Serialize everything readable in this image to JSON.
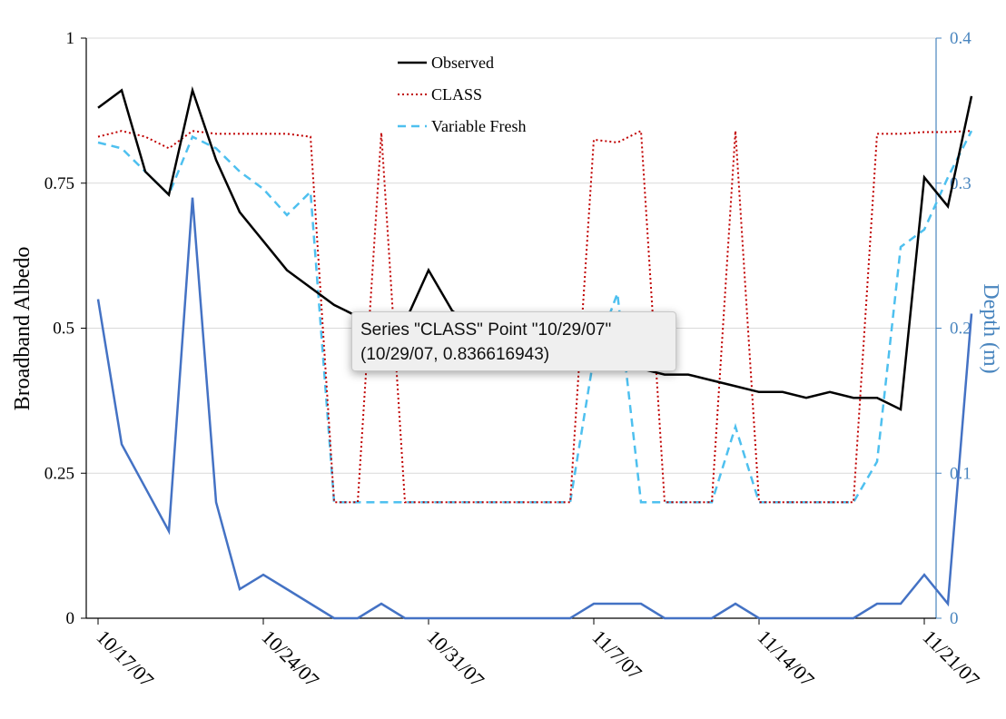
{
  "chart_data": {
    "type": "line",
    "title": "",
    "xlabel": "",
    "ylabel": "Broadband Albedo",
    "y2label": "Depth (m)",
    "ylim": [
      0,
      1
    ],
    "y2lim": [
      0,
      0.4
    ],
    "yticks": [
      "0",
      "0.25",
      "0.5",
      "0.75",
      "1"
    ],
    "y2ticks": [
      "0",
      "0.1",
      "0.2",
      "0.3",
      "0.4"
    ],
    "xticks": [
      "10/17/07",
      "10/24/07",
      "10/31/07",
      "11/7/07",
      "11/14/07",
      "11/21/07"
    ],
    "x_start": "10/17/07",
    "x_end": "11/21/07",
    "grid": true,
    "legend_position": "top-center",
    "series": [
      {
        "name": "Observed",
        "axis": "left",
        "color": "#000000",
        "style": "solid",
        "x": [
          "10/17/07",
          "10/18/07",
          "10/19/07",
          "10/20/07",
          "10/21/07",
          "10/22/07",
          "10/23/07",
          "10/24/07",
          "10/25/07",
          "10/26/07",
          "10/27/07",
          "10/28/07",
          "10/29/07",
          "10/30/07",
          "10/31/07",
          "11/1/07",
          "11/2/07",
          "11/3/07",
          "11/4/07",
          "11/5/07",
          "11/6/07",
          "11/7/07",
          "11/8/07",
          "11/9/07",
          "11/10/07",
          "11/11/07",
          "11/12/07",
          "11/13/07",
          "11/14/07",
          "11/15/07",
          "11/16/07",
          "11/17/07",
          "11/18/07",
          "11/19/07",
          "11/20/07",
          "11/21/07",
          "11/22/07",
          "11/23/07"
        ],
        "values": [
          0.88,
          0.91,
          0.77,
          0.73,
          0.91,
          0.79,
          0.7,
          0.65,
          0.6,
          0.57,
          0.54,
          0.52,
          0.51,
          0.51,
          0.6,
          0.53,
          0.5,
          0.49,
          0.48,
          0.47,
          0.46,
          0.45,
          0.44,
          0.43,
          0.42,
          0.42,
          0.41,
          0.4,
          0.39,
          0.39,
          0.38,
          0.39,
          0.38,
          0.38,
          0.36,
          0.76,
          0.71,
          0.9
        ]
      },
      {
        "name": "CLASS",
        "axis": "left",
        "color": "#c00000",
        "style": "dotted",
        "x": [
          "10/17/07",
          "10/18/07",
          "10/19/07",
          "10/20/07",
          "10/21/07",
          "10/22/07",
          "10/23/07",
          "10/24/07",
          "10/25/07",
          "10/26/07",
          "10/27/07",
          "10/28/07",
          "10/29/07",
          "10/30/07",
          "10/31/07",
          "11/1/07",
          "11/2/07",
          "11/3/07",
          "11/4/07",
          "11/5/07",
          "11/6/07",
          "11/7/07",
          "11/8/07",
          "11/9/07",
          "11/10/07",
          "11/11/07",
          "11/12/07",
          "11/13/07",
          "11/14/07",
          "11/15/07",
          "11/16/07",
          "11/17/07",
          "11/18/07",
          "11/19/07",
          "11/20/07",
          "11/21/07",
          "11/22/07",
          "11/23/07"
        ],
        "values": [
          0.83,
          0.84,
          0.83,
          0.81,
          0.84,
          0.835,
          0.835,
          0.835,
          0.835,
          0.83,
          0.2,
          0.2,
          0.837,
          0.2,
          0.2,
          0.2,
          0.2,
          0.2,
          0.2,
          0.2,
          0.2,
          0.825,
          0.82,
          0.84,
          0.2,
          0.2,
          0.2,
          0.84,
          0.2,
          0.2,
          0.2,
          0.2,
          0.2,
          0.835,
          0.835,
          0.838,
          0.838,
          0.84
        ]
      },
      {
        "name": "Variable Fresh",
        "axis": "left",
        "color": "#4ec0ef",
        "style": "dashed",
        "x": [
          "10/17/07",
          "10/18/07",
          "10/19/07",
          "10/20/07",
          "10/21/07",
          "10/22/07",
          "10/23/07",
          "10/24/07",
          "10/25/07",
          "10/26/07",
          "10/27/07",
          "10/28/07",
          "10/29/07",
          "10/30/07",
          "10/31/07",
          "11/1/07",
          "11/2/07",
          "11/3/07",
          "11/4/07",
          "11/5/07",
          "11/6/07",
          "11/7/07",
          "11/8/07",
          "11/9/07",
          "11/10/07",
          "11/11/07",
          "11/12/07",
          "11/13/07",
          "11/14/07",
          "11/15/07",
          "11/16/07",
          "11/17/07",
          "11/18/07",
          "11/19/07",
          "11/20/07",
          "11/21/07",
          "11/22/07",
          "11/23/07"
        ],
        "values": [
          0.82,
          0.81,
          0.77,
          0.73,
          0.83,
          0.81,
          0.77,
          0.74,
          0.695,
          0.735,
          0.2,
          0.2,
          0.2,
          0.2,
          0.2,
          0.2,
          0.2,
          0.2,
          0.2,
          0.2,
          0.2,
          0.45,
          0.56,
          0.2,
          0.2,
          0.2,
          0.2,
          0.33,
          0.2,
          0.2,
          0.2,
          0.2,
          0.2,
          0.27,
          0.64,
          0.67,
          0.76,
          0.84
        ]
      },
      {
        "name": "Depth",
        "axis": "right",
        "color": "#4472c4",
        "style": "solid",
        "x": [
          "10/17/07",
          "10/18/07",
          "10/19/07",
          "10/20/07",
          "10/21/07",
          "10/22/07",
          "10/23/07",
          "10/24/07",
          "10/25/07",
          "10/26/07",
          "10/27/07",
          "10/28/07",
          "10/29/07",
          "10/30/07",
          "10/31/07",
          "11/1/07",
          "11/2/07",
          "11/3/07",
          "11/4/07",
          "11/5/07",
          "11/6/07",
          "11/7/07",
          "11/8/07",
          "11/9/07",
          "11/10/07",
          "11/11/07",
          "11/12/07",
          "11/13/07",
          "11/14/07",
          "11/15/07",
          "11/16/07",
          "11/17/07",
          "11/18/07",
          "11/19/07",
          "11/20/07",
          "11/21/07",
          "11/22/07",
          "11/23/07"
        ],
        "values": [
          0.22,
          0.12,
          0.09,
          0.06,
          0.29,
          0.08,
          0.02,
          0.03,
          0.02,
          0.01,
          0.0,
          0.0,
          0.01,
          0.0,
          0.0,
          0.0,
          0.0,
          0.0,
          0.0,
          0.0,
          0.0,
          0.01,
          0.01,
          0.01,
          0.0,
          0.0,
          0.0,
          0.01,
          0.0,
          0.0,
          0.0,
          0.0,
          0.0,
          0.01,
          0.01,
          0.03,
          0.01,
          0.21
        ]
      }
    ],
    "legend": [
      {
        "label": "Observed",
        "color": "#000000",
        "style": "solid"
      },
      {
        "label": "CLASS",
        "color": "#c00000",
        "style": "dotted"
      },
      {
        "label": "Variable Fresh",
        "color": "#4ec0ef",
        "style": "dashed"
      }
    ]
  },
  "tooltip": {
    "line1": "Series \"CLASS\" Point \"10/29/07\"",
    "line2": "(10/29/07, 0.836616943)"
  }
}
